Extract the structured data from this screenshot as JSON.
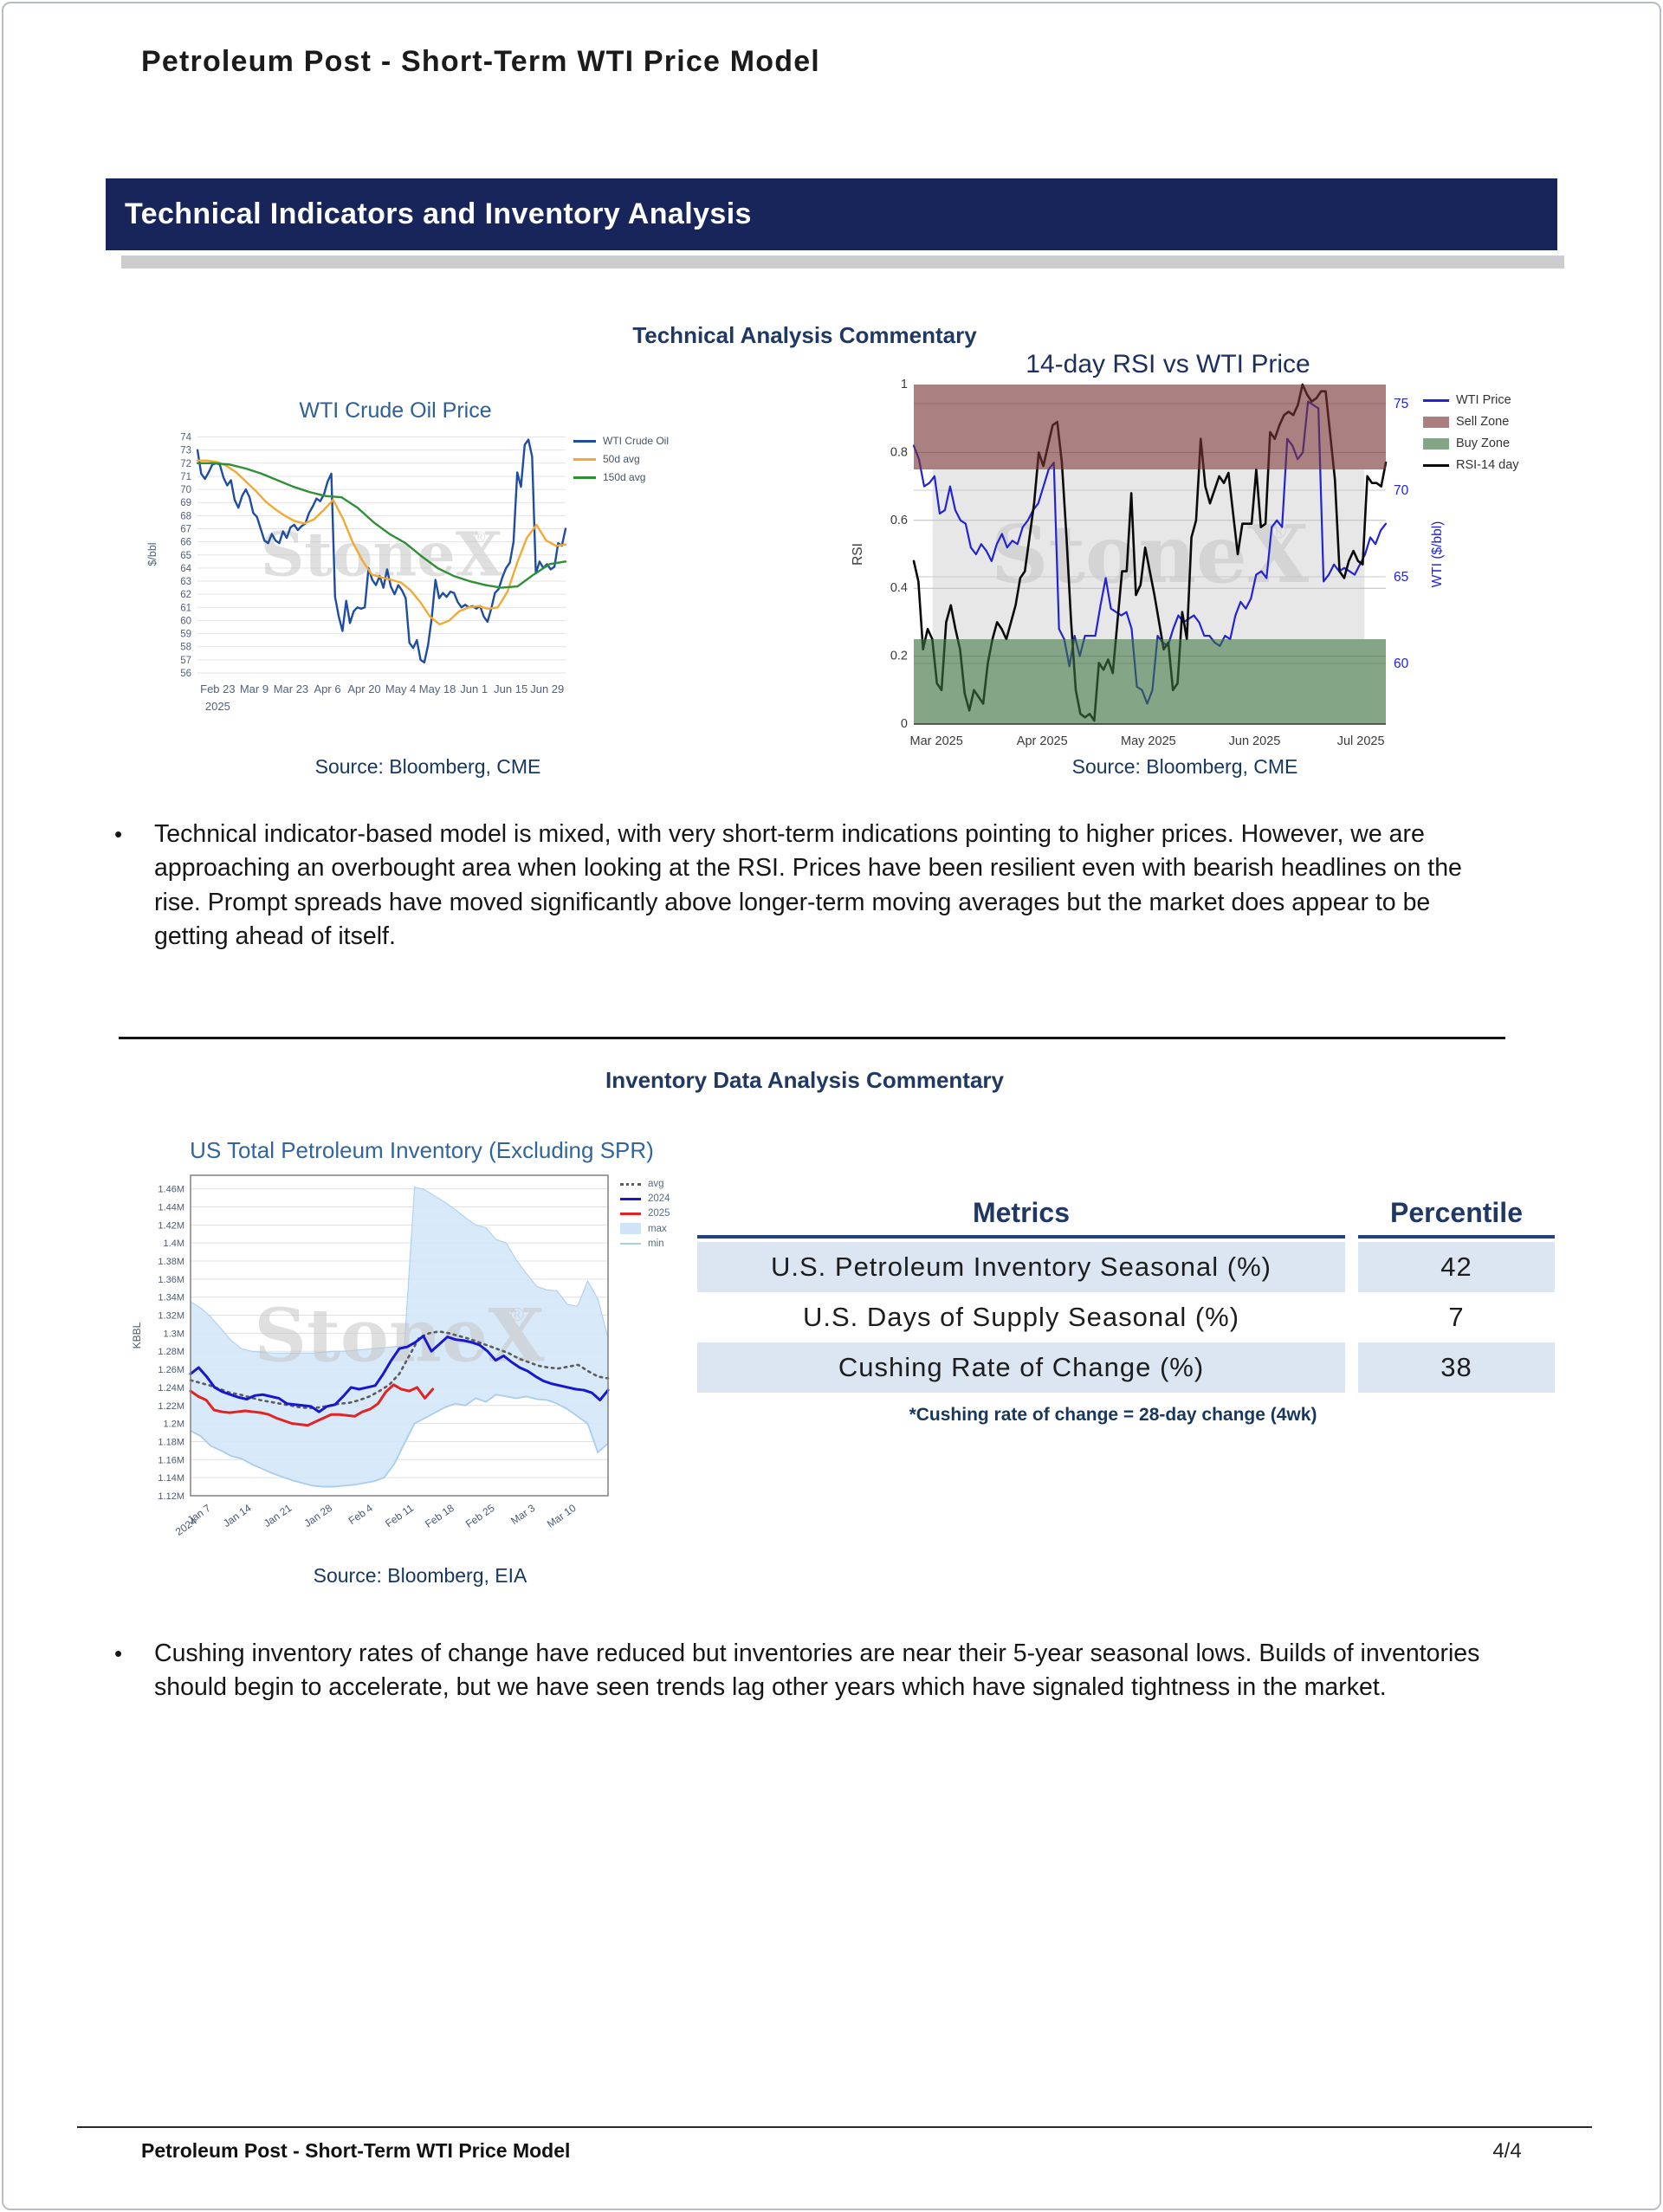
{
  "page": {
    "title": "Petroleum Post - Short-Term WTI Price Model",
    "section_banner": "Technical Indicators and Inventory Analysis",
    "heading_technical": "Technical Analysis Commentary",
    "heading_inventory": "Inventory Data Analysis Commentary",
    "bullet_technical": "Technical indicator-based model is mixed, with very short-term indications pointing to higher prices. However, we are approaching an overbought area when looking at the RSI. Prices have been resilient even with bearish headlines on the rise. Prompt spreads have moved significantly above longer-term moving averages but the market does appear to be getting ahead of itself.",
    "bullet_inventory": "Cushing inventory rates of change have reduced but inventories are near their 5-year seasonal lows. Builds of inventories should begin to accelerate, but we have seen trends lag other years which have signaled tightness in the market.",
    "source_cme_left": "Source: Bloomberg, CME",
    "source_cme_right": "Source: Bloomberg, CME",
    "source_eia": "Source: Bloomberg, EIA",
    "footer": {
      "title": "Petroleum Post - Short-Term WTI Price Model",
      "page": "4/4"
    },
    "accent_colors": {
      "banner_navy": "#17255b",
      "heading_navy": "#1f3864",
      "table_row_blue": "#dce6f2"
    }
  },
  "table": {
    "headers": [
      "Metrics",
      "Percentile"
    ],
    "rows": [
      {
        "metric": "U.S. Petroleum Inventory Seasonal (%)",
        "percentile": "42"
      },
      {
        "metric": "U.S. Days of Supply Seasonal (%)",
        "percentile": "7"
      },
      {
        "metric": "Cushing Rate of Change (%)",
        "percentile": "38"
      }
    ],
    "footnote": "*Cushing rate of change = 28-day change (4wk)"
  },
  "chart_data": [
    {
      "id": "wti",
      "type": "line",
      "title": "WTI Crude Oil Price",
      "ylabel": "$/bbl",
      "xlabel": "",
      "ylim": [
        55.8,
        74.3
      ],
      "ytick_vals": [
        56,
        57,
        58,
        59,
        60,
        61,
        62,
        63,
        64,
        65,
        66,
        67,
        68,
        69,
        70,
        71,
        72,
        73,
        74
      ],
      "ytick_labels": [
        "56",
        "57",
        "58",
        "59",
        "60",
        "61",
        "62",
        "63",
        "64",
        "65",
        "66",
        "67",
        "68",
        "69",
        "70",
        "71",
        "72",
        "73",
        "74"
      ],
      "xticks": [
        {
          "f": 0.055,
          "t": "Feb 23",
          "t2": "2025"
        },
        {
          "f": 0.154,
          "t": "Mar 9"
        },
        {
          "f": 0.254,
          "t": "Mar 23"
        },
        {
          "f": 0.353,
          "t": "Apr 6"
        },
        {
          "f": 0.453,
          "t": "Apr 20"
        },
        {
          "f": 0.552,
          "t": "May 4"
        },
        {
          "f": 0.652,
          "t": "May 18"
        },
        {
          "f": 0.751,
          "t": "Jun 1"
        },
        {
          "f": 0.851,
          "t": "Jun 15"
        },
        {
          "f": 0.95,
          "t": "Jun 29"
        }
      ],
      "watermark": "StoneX",
      "watermark_reg": "®",
      "series": [
        {
          "name": "WTI Crude Oil",
          "color": "#1f4da0",
          "width": 2.4,
          "values": [
            73.0,
            71.2,
            70.8,
            71.3,
            71.9,
            72.0,
            71.9,
            70.9,
            70.3,
            70.7,
            69.2,
            68.6,
            69.5,
            70.0,
            69.4,
            68.2,
            67.9,
            67.0,
            66.1,
            65.9,
            66.6,
            66.1,
            65.9,
            66.8,
            66.3,
            67.1,
            67.3,
            66.9,
            67.2,
            67.4,
            68.2,
            68.7,
            69.3,
            69.1,
            69.6,
            70.6,
            71.2,
            61.8,
            60.3,
            59.2,
            61.5,
            59.8,
            60.7,
            61.0,
            60.9,
            61.0,
            64.0,
            63.1,
            62.7,
            63.4,
            62.5,
            63.9,
            62.6,
            62.0,
            62.7,
            62.3,
            61.7,
            58.3,
            57.9,
            58.5,
            57.0,
            56.8,
            58.1,
            60.2,
            63.1,
            61.7,
            62.1,
            61.8,
            62.2,
            62.1,
            61.4,
            61.0,
            61.2,
            61.0,
            61.1,
            60.9,
            61.1,
            60.3,
            59.9,
            60.9,
            62.1,
            62.4,
            63.3,
            64.0,
            64.4,
            66.0,
            71.3,
            70.2,
            73.4,
            73.8,
            72.5,
            63.6,
            64.5,
            64.0,
            64.3,
            63.9,
            64.1,
            65.9,
            65.7,
            67.0
          ]
        },
        {
          "name": "50d avg",
          "color": "#f3a933",
          "width": 2.4,
          "values": [
            72.2,
            72.2,
            72.1,
            71.8,
            71.3,
            70.6,
            69.9,
            69.1,
            68.5,
            68.0,
            67.6,
            67.4,
            67.7,
            68.4,
            69.2,
            67.8,
            66.0,
            64.6,
            63.5,
            63.3,
            63.1,
            62.9,
            62.3,
            61.4,
            60.3,
            59.7,
            60.0,
            60.7,
            61.0,
            61.1,
            60.9,
            61.0,
            62.2,
            64.4,
            66.3,
            67.3,
            66.1,
            65.7,
            65.8
          ]
        },
        {
          "name": "150d avg",
          "color": "#2f8f35",
          "width": 2.4,
          "values": [
            72.0,
            72.0,
            71.9,
            71.6,
            71.2,
            70.7,
            70.2,
            69.8,
            69.5,
            69.4,
            68.6,
            67.5,
            66.6,
            65.9,
            64.9,
            64.0,
            63.4,
            63.0,
            62.7,
            62.5,
            62.6,
            63.5,
            64.3,
            64.5
          ]
        }
      ]
    },
    {
      "id": "rsi",
      "type": "line",
      "title": "14-day RSI vs WTI Price",
      "ylabel": "RSI",
      "xlabel": "",
      "ylim": [
        0,
        1
      ],
      "ytick_vals": [
        0,
        0.2,
        0.4,
        0.6,
        0.8,
        1
      ],
      "ytick_labels": [
        "0",
        "0.2",
        "0.4",
        "0.6",
        "0.8",
        "1"
      ],
      "grid_vals": [
        0.2,
        0.4,
        0.6,
        0.8
      ],
      "right": {
        "lim": [
          56.5,
          76.1
        ],
        "vals": [
          60,
          65,
          70,
          75
        ],
        "labels": [
          "60",
          "65",
          "70",
          "75"
        ],
        "label": "WTI ($/bbl)",
        "color": "#2323d6"
      },
      "xticks": [
        {
          "f": 0.048,
          "t": "Mar 2025"
        },
        {
          "f": 0.272,
          "t": "Apr 2025"
        },
        {
          "f": 0.497,
          "t": "May 2025"
        },
        {
          "f": 0.722,
          "t": "Jun 2025"
        },
        {
          "f": 0.947,
          "t": "Jul 2025"
        }
      ],
      "zones": [
        {
          "from": 0.25,
          "to": 0.75,
          "color": "#e7e7e7",
          "x0": 0.04,
          "x1": 0.955,
          "over": false
        },
        {
          "from": 0.75,
          "to": 1.0,
          "color": "rgba(120,50,50,0.62)",
          "over": true
        },
        {
          "from": 0.0,
          "to": 0.25,
          "color": "rgba(58,112,60,0.62)",
          "over": true
        }
      ],
      "watermark": "StoneX",
      "watermark_reg": "®",
      "legend": [
        {
          "label": "WTI Price",
          "color": "#2323d6",
          "kind": "line"
        },
        {
          "label": "Sell Zone",
          "color": "#ab7f7f",
          "kind": "patch"
        },
        {
          "label": "Buy Zone",
          "color": "#85a686",
          "kind": "patch"
        },
        {
          "label": "RSI-14 day",
          "color": "#0a0a0a",
          "kind": "line"
        }
      ],
      "series": [
        {
          "name": "WTI Price",
          "color": "#2323d6",
          "width": 2.2,
          "values": [
            0.82,
            0.78,
            0.7,
            0.71,
            0.73,
            0.62,
            0.63,
            0.7,
            0.63,
            0.6,
            0.59,
            0.52,
            0.5,
            0.53,
            0.51,
            0.48,
            0.53,
            0.56,
            0.52,
            0.54,
            0.53,
            0.58,
            0.6,
            0.63,
            0.65,
            0.7,
            0.75,
            0.77,
            0.28,
            0.25,
            0.17,
            0.26,
            0.2,
            0.26,
            0.26,
            0.26,
            0.35,
            0.43,
            0.34,
            0.33,
            0.32,
            0.33,
            0.28,
            0.11,
            0.1,
            0.06,
            0.1,
            0.26,
            0.24,
            0.23,
            0.28,
            0.32,
            0.3,
            0.31,
            0.32,
            0.3,
            0.26,
            0.26,
            0.24,
            0.23,
            0.26,
            0.25,
            0.32,
            0.36,
            0.34,
            0.37,
            0.44,
            0.45,
            0.43,
            0.58,
            0.6,
            0.58,
            0.84,
            0.82,
            0.78,
            0.8,
            0.95,
            0.94,
            0.93,
            0.42,
            0.44,
            0.47,
            0.45,
            0.46,
            0.45,
            0.44,
            0.47,
            0.5,
            0.55,
            0.53,
            0.57,
            0.59
          ]
        },
        {
          "name": "RSI-14 day",
          "color": "#0a0a0a",
          "width": 2.6,
          "values": [
            0.48,
            0.42,
            0.22,
            0.28,
            0.25,
            0.12,
            0.1,
            0.3,
            0.35,
            0.28,
            0.22,
            0.09,
            0.04,
            0.1,
            0.08,
            0.06,
            0.18,
            0.25,
            0.3,
            0.28,
            0.25,
            0.3,
            0.35,
            0.43,
            0.45,
            0.55,
            0.65,
            0.8,
            0.76,
            0.82,
            0.88,
            0.89,
            0.77,
            0.55,
            0.3,
            0.1,
            0.03,
            0.02,
            0.03,
            0.01,
            0.18,
            0.16,
            0.19,
            0.15,
            0.3,
            0.45,
            0.45,
            0.68,
            0.38,
            0.41,
            0.52,
            0.45,
            0.38,
            0.3,
            0.22,
            0.24,
            0.1,
            0.12,
            0.33,
            0.25,
            0.55,
            0.6,
            0.84,
            0.7,
            0.65,
            0.69,
            0.73,
            0.71,
            0.74,
            0.62,
            0.5,
            0.59,
            0.59,
            0.59,
            0.75,
            0.58,
            0.59,
            0.86,
            0.84,
            0.88,
            0.91,
            0.92,
            0.91,
            0.94,
            1.0,
            0.97,
            0.95,
            0.96,
            0.98,
            0.98,
            0.85,
            0.72,
            0.45,
            0.43,
            0.48,
            0.51,
            0.48,
            0.47,
            0.73,
            0.71,
            0.71,
            0.7,
            0.77
          ]
        }
      ]
    },
    {
      "id": "inventory",
      "type": "line",
      "title": "US Total Petroleum Inventory (Excluding SPR)",
      "ylabel": "KBBL",
      "xlabel": "",
      "ylim": [
        1.12,
        1.475
      ],
      "ytick_vals": [
        1.46,
        1.44,
        1.42,
        1.4,
        1.38,
        1.36,
        1.34,
        1.32,
        1.3,
        1.28,
        1.26,
        1.24,
        1.22,
        1.2,
        1.18,
        1.16,
        1.14,
        1.12
      ],
      "ytick_labels": [
        "1.46M",
        "1.44M",
        "1.42M",
        "1.4M",
        "1.38M",
        "1.36M",
        "1.34M",
        "1.32M",
        "1.3M",
        "1.28M",
        "1.26M",
        "1.24M",
        "1.22M",
        "1.2M",
        "1.18M",
        "1.16M",
        "1.14M",
        "1.12M"
      ],
      "xticks": [
        {
          "f": 0.05,
          "t": "Jan 7",
          "t2": "2024"
        },
        {
          "f": 0.147,
          "t": "Jan 14"
        },
        {
          "f": 0.244,
          "t": "Jan 21"
        },
        {
          "f": 0.341,
          "t": "Jan 28"
        },
        {
          "f": 0.438,
          "t": "Feb 4"
        },
        {
          "f": 0.536,
          "t": "Feb 11"
        },
        {
          "f": 0.633,
          "t": "Feb 18"
        },
        {
          "f": 0.73,
          "t": "Feb 25"
        },
        {
          "f": 0.827,
          "t": "Mar 3"
        },
        {
          "f": 0.925,
          "t": "Mar 10"
        }
      ],
      "watermark": "StoneX",
      "watermark_reg": "®",
      "band": {
        "fill": "#d4e7f8",
        "opacity": 0.9,
        "edge": "#a9cdec",
        "max": [
          1.335,
          1.328,
          1.318,
          1.305,
          1.292,
          1.283,
          1.28,
          1.279,
          1.278,
          1.278,
          1.278,
          1.278,
          1.278,
          1.279,
          1.28,
          1.28,
          1.281,
          1.282,
          1.283,
          1.284,
          1.285,
          1.286,
          1.462,
          1.459,
          1.452,
          1.445,
          1.437,
          1.428,
          1.42,
          1.417,
          1.404,
          1.4,
          1.381,
          1.366,
          1.352,
          1.348,
          1.347,
          1.332,
          1.33,
          1.358,
          1.338,
          1.295
        ],
        "min": [
          1.192,
          1.186,
          1.175,
          1.17,
          1.164,
          1.161,
          1.155,
          1.15,
          1.145,
          1.141,
          1.137,
          1.134,
          1.131,
          1.13,
          1.13,
          1.131,
          1.132,
          1.134,
          1.136,
          1.14,
          1.155,
          1.178,
          1.2,
          1.206,
          1.212,
          1.218,
          1.222,
          1.22,
          1.228,
          1.224,
          1.232,
          1.23,
          1.228,
          1.23,
          1.227,
          1.226,
          1.222,
          1.216,
          1.208,
          1.2,
          1.168,
          1.178
        ]
      },
      "legend": [
        {
          "label": "avg",
          "color": "#5c5c5c",
          "kind": "dotted"
        },
        {
          "label": "2024",
          "color": "#1717cf",
          "kind": "line"
        },
        {
          "label": "2025",
          "color": "#e32222",
          "kind": "line"
        },
        {
          "label": "max",
          "color": "#cfe4f7",
          "kind": "patch"
        },
        {
          "label": "min",
          "color": "#a9cdec",
          "kind": "thin"
        }
      ],
      "series": [
        {
          "name": "avg",
          "color": "#5c5c5c",
          "width": 2.6,
          "dash": "2.5 5",
          "values": [
            1.248,
            1.245,
            1.242,
            1.238,
            1.234,
            1.232,
            1.229,
            1.226,
            1.224,
            1.222,
            1.22,
            1.218,
            1.217,
            1.218,
            1.22,
            1.222,
            1.223,
            1.226,
            1.23,
            1.236,
            1.243,
            1.255,
            1.275,
            1.295,
            1.3,
            1.302,
            1.3,
            1.297,
            1.294,
            1.29,
            1.286,
            1.282,
            1.278,
            1.272,
            1.268,
            1.264,
            1.262,
            1.261,
            1.263,
            1.265,
            1.258,
            1.252,
            1.25
          ]
        },
        {
          "name": "2024",
          "color": "#1717cf",
          "width": 3,
          "values": [
            1.255,
            1.262,
            1.252,
            1.24,
            1.235,
            1.232,
            1.229,
            1.227,
            1.231,
            1.232,
            1.23,
            1.228,
            1.222,
            1.221,
            1.22,
            1.219,
            1.213,
            1.219,
            1.221,
            1.23,
            1.24,
            1.238,
            1.24,
            1.242,
            1.255,
            1.27,
            1.283,
            1.285,
            1.29,
            1.297,
            1.28,
            1.288,
            1.296,
            1.293,
            1.292,
            1.29,
            1.287,
            1.28,
            1.27,
            1.275,
            1.268,
            1.262,
            1.258,
            1.252,
            1.247,
            1.244,
            1.242,
            1.24,
            1.238,
            1.237,
            1.234,
            1.226,
            1.237
          ]
        },
        {
          "name": "2025",
          "color": "#e32222",
          "width": 3,
          "xmax": 0.58,
          "values": [
            1.236,
            1.23,
            1.226,
            1.215,
            1.213,
            1.212,
            1.213,
            1.214,
            1.213,
            1.212,
            1.21,
            1.206,
            1.203,
            1.2,
            1.199,
            1.198,
            1.202,
            1.206,
            1.21,
            1.21,
            1.209,
            1.208,
            1.213,
            1.216,
            1.222,
            1.235,
            1.243,
            1.238,
            1.236,
            1.24,
            1.228,
            1.238
          ]
        }
      ]
    }
  ]
}
